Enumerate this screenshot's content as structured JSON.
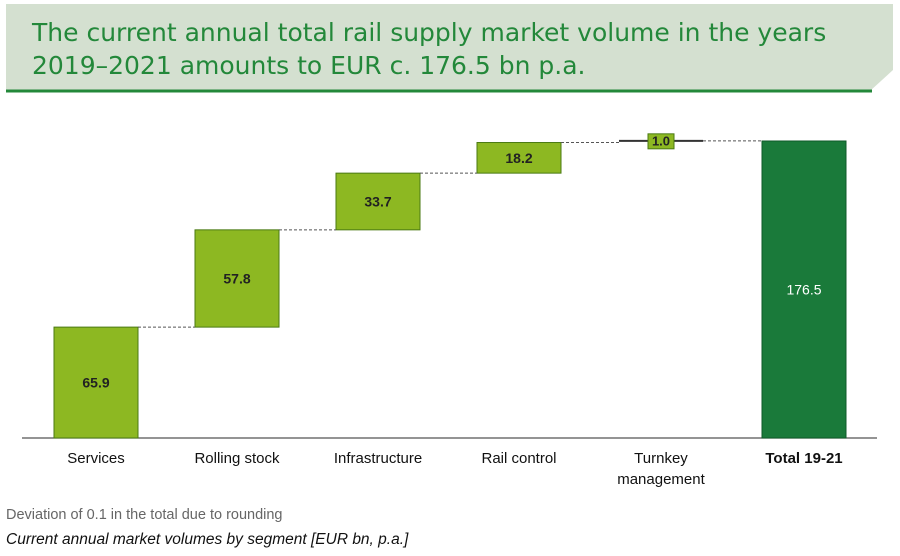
{
  "header": {
    "title": "The current annual total rail supply market volume in the years 2019–2021 amounts to EUR c. 176.5 bn p.a."
  },
  "chart_data": {
    "type": "bar",
    "subtype": "waterfall",
    "categories": [
      "Services",
      "Rolling stock",
      "Infrastructure",
      "Rail control",
      "Turnkey management",
      "Total 19-21"
    ],
    "category_lines": [
      [
        "Services"
      ],
      [
        "Rolling stock"
      ],
      [
        "Infrastructure"
      ],
      [
        "Rail control"
      ],
      [
        "Turnkey",
        "management"
      ],
      [
        "Total 19-21"
      ]
    ],
    "values": [
      65.9,
      57.8,
      33.7,
      18.2,
      1.0,
      176.5
    ],
    "labels": [
      "65.9",
      "57.8",
      "33.7",
      "18.2",
      "1.0",
      "176.5"
    ],
    "is_total": [
      false,
      false,
      false,
      false,
      false,
      true
    ],
    "ylim": [
      0,
      176.5
    ],
    "unit": "EUR bn, p.a.",
    "colors": {
      "segment": "#8db822",
      "segment_border": "#4a7a12",
      "total": "#1a7a3a",
      "total_border": "#0f5a28",
      "connector": "#555555",
      "axis": "#555555"
    }
  },
  "footnote": "Deviation of 0.1 in the total due to rounding",
  "caption": "Current annual market volumes by segment [EUR bn, p.a.]",
  "colors": {
    "banner_bg": "#d4e0d0",
    "banner_rule": "#23883a",
    "title_text": "#23883a"
  }
}
